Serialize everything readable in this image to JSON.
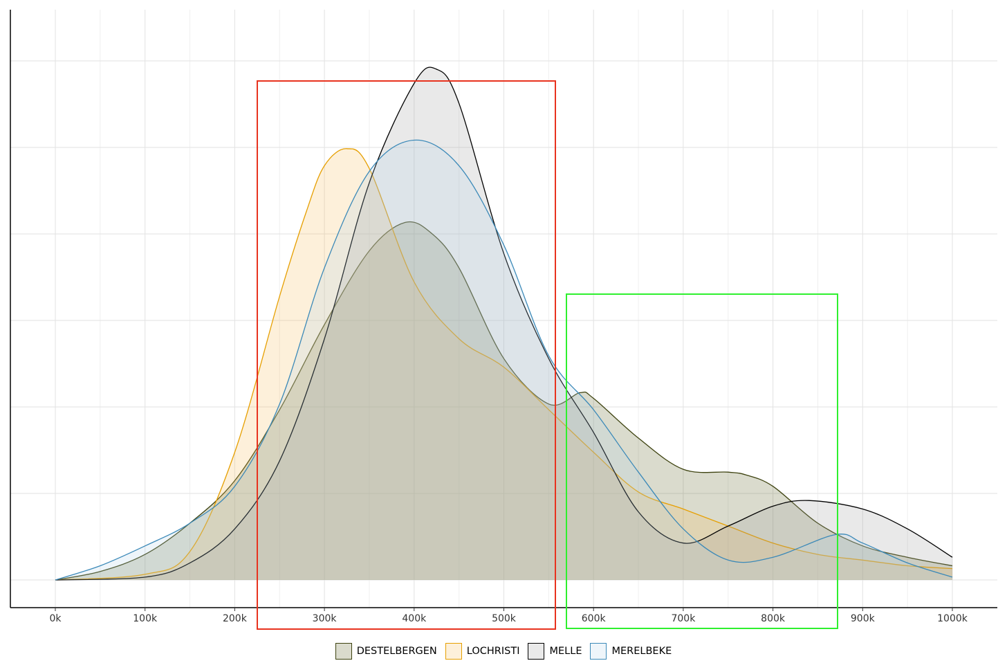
{
  "chart_data": {
    "type": "area",
    "subtype": "density",
    "title": "",
    "xlabel": "",
    "ylabel": "",
    "xlim": [
      -50000,
      1050000
    ],
    "x_ticks": [
      0,
      100000,
      200000,
      300000,
      400000,
      500000,
      600000,
      700000,
      800000,
      900000,
      1000000
    ],
    "x_tick_labels": [
      "0k",
      "100k",
      "200k",
      "300k",
      "400k",
      "500k",
      "600k",
      "700k",
      "800k",
      "900k",
      "1000k"
    ],
    "y_tick_labels_shown": false,
    "grid": true,
    "legend_position": "bottom",
    "series": [
      {
        "name": "DESTELBERGEN",
        "fill": "#575c1d",
        "stroke": "#3d420f",
        "x": [
          0,
          50000,
          100000,
          150000,
          200000,
          250000,
          300000,
          350000,
          390000,
          420000,
          450000,
          500000,
          550000,
          585000,
          600000,
          650000,
          700000,
          750000,
          770000,
          800000,
          850000,
          900000,
          950000,
          1000000
        ],
        "y": [
          0,
          0.03,
          0.09,
          0.2,
          0.35,
          0.6,
          0.9,
          1.16,
          1.26,
          1.22,
          1.1,
          0.78,
          0.62,
          0.66,
          0.64,
          0.5,
          0.39,
          0.38,
          0.37,
          0.33,
          0.2,
          0.12,
          0.08,
          0.05
        ]
      },
      {
        "name": "LOCHRISTI",
        "fill": "#f5b958",
        "stroke": "#e69f00",
        "x": [
          0,
          100000,
          150000,
          200000,
          250000,
          280000,
          300000,
          325000,
          350000,
          400000,
          450000,
          500000,
          550000,
          600000,
          650000,
          700000,
          750000,
          800000,
          850000,
          900000,
          950000,
          1000000
        ],
        "y": [
          0,
          0.02,
          0.1,
          0.45,
          1.0,
          1.3,
          1.46,
          1.52,
          1.45,
          1.05,
          0.85,
          0.75,
          0.6,
          0.45,
          0.31,
          0.25,
          0.19,
          0.13,
          0.09,
          0.07,
          0.05,
          0.04
        ]
      },
      {
        "name": "MELLE",
        "fill": "#9b9b9b",
        "stroke": "#000000",
        "x": [
          0,
          100000,
          150000,
          200000,
          250000,
          300000,
          350000,
          400000,
          425000,
          450000,
          500000,
          550000,
          600000,
          650000,
          700000,
          750000,
          800000,
          840000,
          900000,
          950000,
          1000000
        ],
        "y": [
          0,
          0.01,
          0.06,
          0.18,
          0.42,
          0.85,
          1.4,
          1.75,
          1.8,
          1.68,
          1.15,
          0.78,
          0.52,
          0.24,
          0.13,
          0.19,
          0.26,
          0.28,
          0.25,
          0.18,
          0.08
        ]
      },
      {
        "name": "MERELBEKE",
        "fill": "#b3d2e6",
        "stroke": "#3b89b8",
        "x": [
          0,
          50000,
          100000,
          150000,
          200000,
          250000,
          300000,
          350000,
          400000,
          450000,
          500000,
          550000,
          600000,
          650000,
          700000,
          750000,
          800000,
          870000,
          900000,
          950000,
          1000000
        ],
        "y": [
          0,
          0.05,
          0.12,
          0.2,
          0.33,
          0.62,
          1.1,
          1.44,
          1.55,
          1.46,
          1.18,
          0.79,
          0.6,
          0.38,
          0.18,
          0.07,
          0.08,
          0.16,
          0.13,
          0.06,
          0.01
        ]
      }
    ]
  }
}
